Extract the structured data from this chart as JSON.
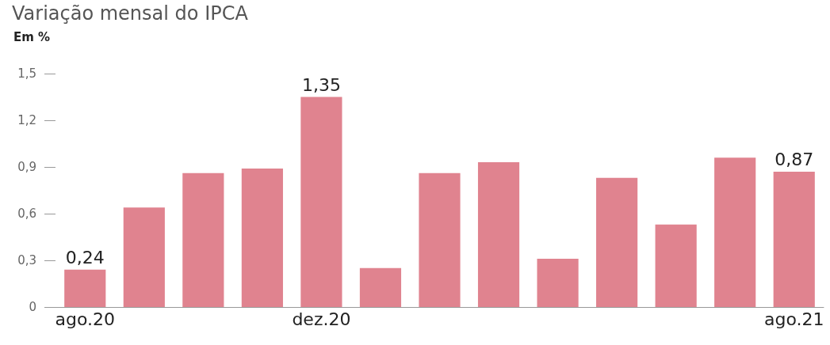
{
  "chart_data": {
    "type": "bar",
    "title": "Variação mensal do IPCA",
    "ylabel": "Em %",
    "categories": [
      "ago.20",
      null,
      null,
      null,
      "dez.20",
      null,
      null,
      null,
      null,
      null,
      null,
      null,
      "ago.21"
    ],
    "values": [
      0.24,
      0.64,
      0.86,
      0.89,
      1.35,
      0.25,
      0.86,
      0.93,
      0.31,
      0.83,
      0.53,
      0.96,
      0.87
    ],
    "value_labels": [
      "0,24",
      null,
      null,
      null,
      "1,35",
      null,
      null,
      null,
      null,
      null,
      null,
      null,
      "0,87"
    ],
    "color": "#e0838f",
    "ylim": [
      0,
      1.5
    ],
    "yticks": [
      0,
      {
        "value": 0.3,
        "label": "0,3"
      },
      {
        "value": 0.6,
        "label": "0,6"
      },
      {
        "value": 0.9,
        "label": "0,9"
      },
      {
        "value": 1.2,
        "label": "1,2"
      },
      {
        "value": 1.5,
        "label": "1,5"
      }
    ],
    "grid": false
  }
}
